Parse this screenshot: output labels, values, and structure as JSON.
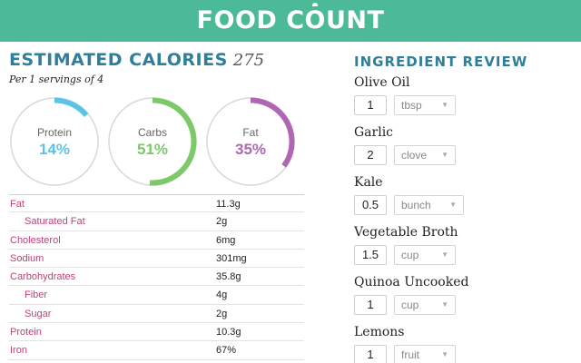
{
  "header": {
    "logo_start": "FOOD C",
    "logo_o": "O",
    "logo_end": "UNT"
  },
  "calories": {
    "title": "ESTIMATED CALORIES",
    "value": "275",
    "servings": "Per 1 servings of 4"
  },
  "macros": [
    {
      "label": "Protein",
      "percent_text": "14%",
      "percent": 14,
      "color": "#5bc4e6"
    },
    {
      "label": "Carbs",
      "percent_text": "51%",
      "percent": 51,
      "color": "#7cc96a"
    },
    {
      "label": "Fat",
      "percent_text": "35%",
      "percent": 35,
      "color": "#b066b3"
    }
  ],
  "nutrition": [
    {
      "name": "Fat",
      "value": "11.3g",
      "indent": false
    },
    {
      "name": "Saturated Fat",
      "value": "2g",
      "indent": true
    },
    {
      "name": "Cholesterol",
      "value": "6mg",
      "indent": false
    },
    {
      "name": "Sodium",
      "value": "301mg",
      "indent": false
    },
    {
      "name": "Carbohydrates",
      "value": "35.8g",
      "indent": false
    },
    {
      "name": "Fiber",
      "value": "4g",
      "indent": true
    },
    {
      "name": "Sugar",
      "value": "2g",
      "indent": true
    },
    {
      "name": "Protein",
      "value": "10.3g",
      "indent": false
    },
    {
      "name": "Iron",
      "value": "67%",
      "indent": false
    }
  ],
  "review": {
    "title": "INGREDIENT REVIEW",
    "ingredients": [
      {
        "name": "Olive Oil",
        "qty": "1",
        "unit": "tbsp"
      },
      {
        "name": "Garlic",
        "qty": "2",
        "unit": "clove"
      },
      {
        "name": "Kale",
        "qty": "0.5",
        "unit": "bunch"
      },
      {
        "name": "Vegetable Broth",
        "qty": "1.5",
        "unit": "cup"
      },
      {
        "name": "Quinoa Uncooked",
        "qty": "1",
        "unit": "cup"
      },
      {
        "name": "Lemons",
        "qty": "1",
        "unit": "fruit"
      }
    ]
  },
  "icons": {
    "dropdown": "caret-down-icon"
  },
  "colors": {
    "header": "#4cba96",
    "title": "#2f7f9a",
    "nutrient_name": "#c0407a",
    "track": "#d9d9d9"
  }
}
